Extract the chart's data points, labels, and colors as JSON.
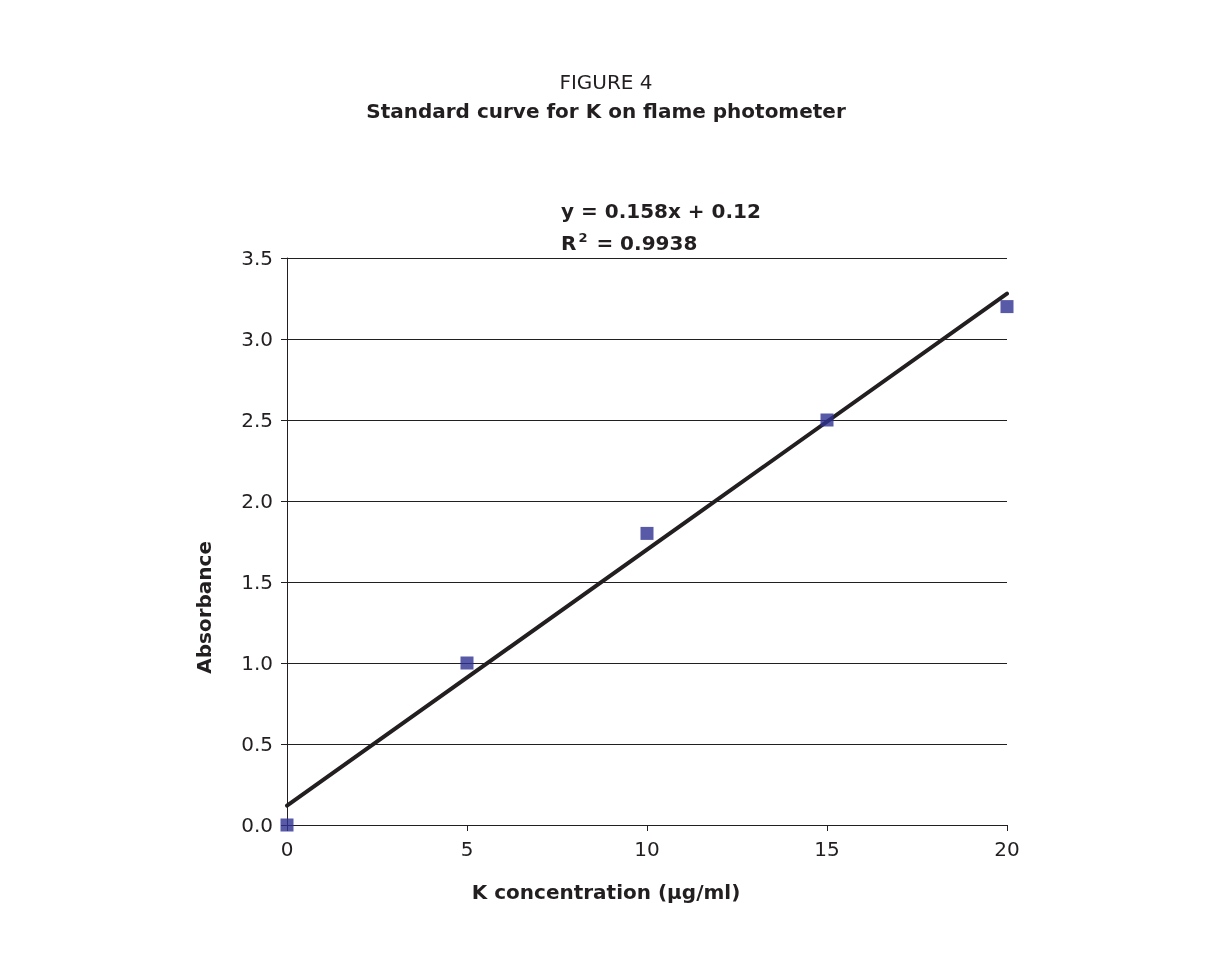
{
  "chart_data": {
    "type": "scatter",
    "title": "FIGURE 4",
    "subtitle": "Standard curve for K on flame photometer",
    "xlabel": "K concentration (µg/ml)",
    "ylabel": "Absorbance",
    "annotations": [
      "y = 0.158x + 0.12",
      "R$^{2}$ = 0.9938"
    ],
    "xlim": [
      0,
      20
    ],
    "xticks": [
      0,
      5,
      10,
      15,
      20
    ],
    "ylim": [
      0,
      3.5
    ],
    "yticks": [
      {
        "value": 0,
        "label": "0.0"
      },
      {
        "value": 0.5,
        "label": "0.5"
      },
      {
        "value": 1,
        "label": "1.0"
      },
      {
        "value": 1.5,
        "label": "1.5"
      },
      {
        "value": 2,
        "label": "2.0"
      },
      {
        "value": 2.5,
        "label": "2.5"
      },
      {
        "value": 3,
        "label": "3.0"
      },
      {
        "value": 3.5,
        "label": "3.5"
      }
    ],
    "grid": "y",
    "series": [
      {
        "marker": "square",
        "color": "#2e3192",
        "x": [
          0,
          5,
          10,
          15,
          20
        ],
        "values": [
          0,
          1,
          1.8,
          2.5,
          3.2
        ]
      },
      {
        "type": "line",
        "color": "#231f20",
        "line_style": "solid",
        "x": [
          0,
          20
        ],
        "values": [
          0.12,
          3.28
        ]
      }
    ]
  }
}
